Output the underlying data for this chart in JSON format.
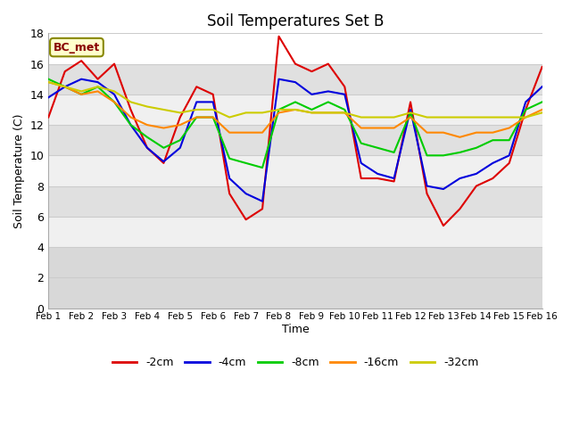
{
  "title": "Soil Temperatures Set B",
  "xlabel": "Time",
  "ylabel": "Soil Temperature (C)",
  "annotation": "BC_met",
  "ylim": [
    0,
    18
  ],
  "yticks": [
    0,
    2,
    4,
    6,
    8,
    10,
    12,
    14,
    16,
    18
  ],
  "xtick_labels": [
    "Feb 1",
    "Feb 2",
    "Feb 3",
    "Feb 4",
    "Feb 5",
    "Feb 6",
    "Feb 7",
    "Feb 8",
    "Feb 9",
    "Feb 10",
    "Feb 11",
    "Feb 12",
    "Feb 13",
    "Feb 14",
    "Feb 15",
    "Feb 16"
  ],
  "series_colors": [
    "#dd0000",
    "#0000dd",
    "#00cc00",
    "#ff8800",
    "#cccc00"
  ],
  "series_labels": [
    "-2cm",
    "-4cm",
    "-8cm",
    "-16cm",
    "-32cm"
  ],
  "background_color": "#ffffff",
  "stripe_light": "#f0f0f0",
  "stripe_dark": "#d8d8d8",
  "stripe_bottom": "#d0d0d0",
  "t": [
    0,
    0.5,
    1,
    1.5,
    2,
    2.5,
    3,
    3.5,
    4,
    4.5,
    5,
    5.5,
    6,
    6.5,
    7,
    7.5,
    8,
    8.5,
    9,
    9.5,
    10,
    10.5,
    11,
    11.5,
    12,
    12.5,
    13,
    13.5,
    14,
    14.5,
    15
  ],
  "cm2": [
    12.5,
    15.5,
    16.2,
    15.0,
    16.0,
    13.0,
    10.5,
    9.5,
    12.5,
    14.5,
    14.0,
    7.5,
    5.8,
    6.5,
    17.8,
    16.0,
    15.5,
    16.0,
    14.5,
    8.5,
    8.5,
    8.3,
    13.5,
    7.5,
    5.4,
    6.5,
    8.0,
    8.5,
    9.5,
    13.0,
    15.8
  ],
  "cm4": [
    13.8,
    14.5,
    15.0,
    14.8,
    14.0,
    12.0,
    10.5,
    9.6,
    10.5,
    13.5,
    13.5,
    8.5,
    7.5,
    7.0,
    15.0,
    14.8,
    14.0,
    14.2,
    14.0,
    9.5,
    8.8,
    8.5,
    13.0,
    8.0,
    7.8,
    8.5,
    8.8,
    9.5,
    10.0,
    13.5,
    14.5
  ],
  "cm8": [
    15.0,
    14.5,
    14.0,
    14.5,
    13.5,
    12.0,
    11.2,
    10.5,
    11.0,
    12.5,
    12.5,
    9.8,
    9.5,
    9.2,
    13.0,
    13.5,
    13.0,
    13.5,
    13.0,
    10.8,
    10.5,
    10.2,
    12.8,
    10.0,
    10.0,
    10.2,
    10.5,
    11.0,
    11.0,
    13.0,
    13.5
  ],
  "cm16": [
    14.8,
    14.5,
    14.0,
    14.2,
    13.5,
    12.5,
    12.0,
    11.8,
    12.0,
    12.5,
    12.5,
    11.5,
    11.5,
    11.5,
    12.8,
    13.0,
    12.8,
    12.8,
    12.8,
    11.8,
    11.8,
    11.8,
    12.5,
    11.5,
    11.5,
    11.2,
    11.5,
    11.5,
    11.8,
    12.5,
    13.0
  ],
  "cm32": [
    14.8,
    14.5,
    14.2,
    14.5,
    14.2,
    13.5,
    13.2,
    13.0,
    12.8,
    13.0,
    13.0,
    12.5,
    12.8,
    12.8,
    13.0,
    13.0,
    12.8,
    12.8,
    12.8,
    12.5,
    12.5,
    12.5,
    12.8,
    12.5,
    12.5,
    12.5,
    12.5,
    12.5,
    12.5,
    12.5,
    12.8
  ]
}
